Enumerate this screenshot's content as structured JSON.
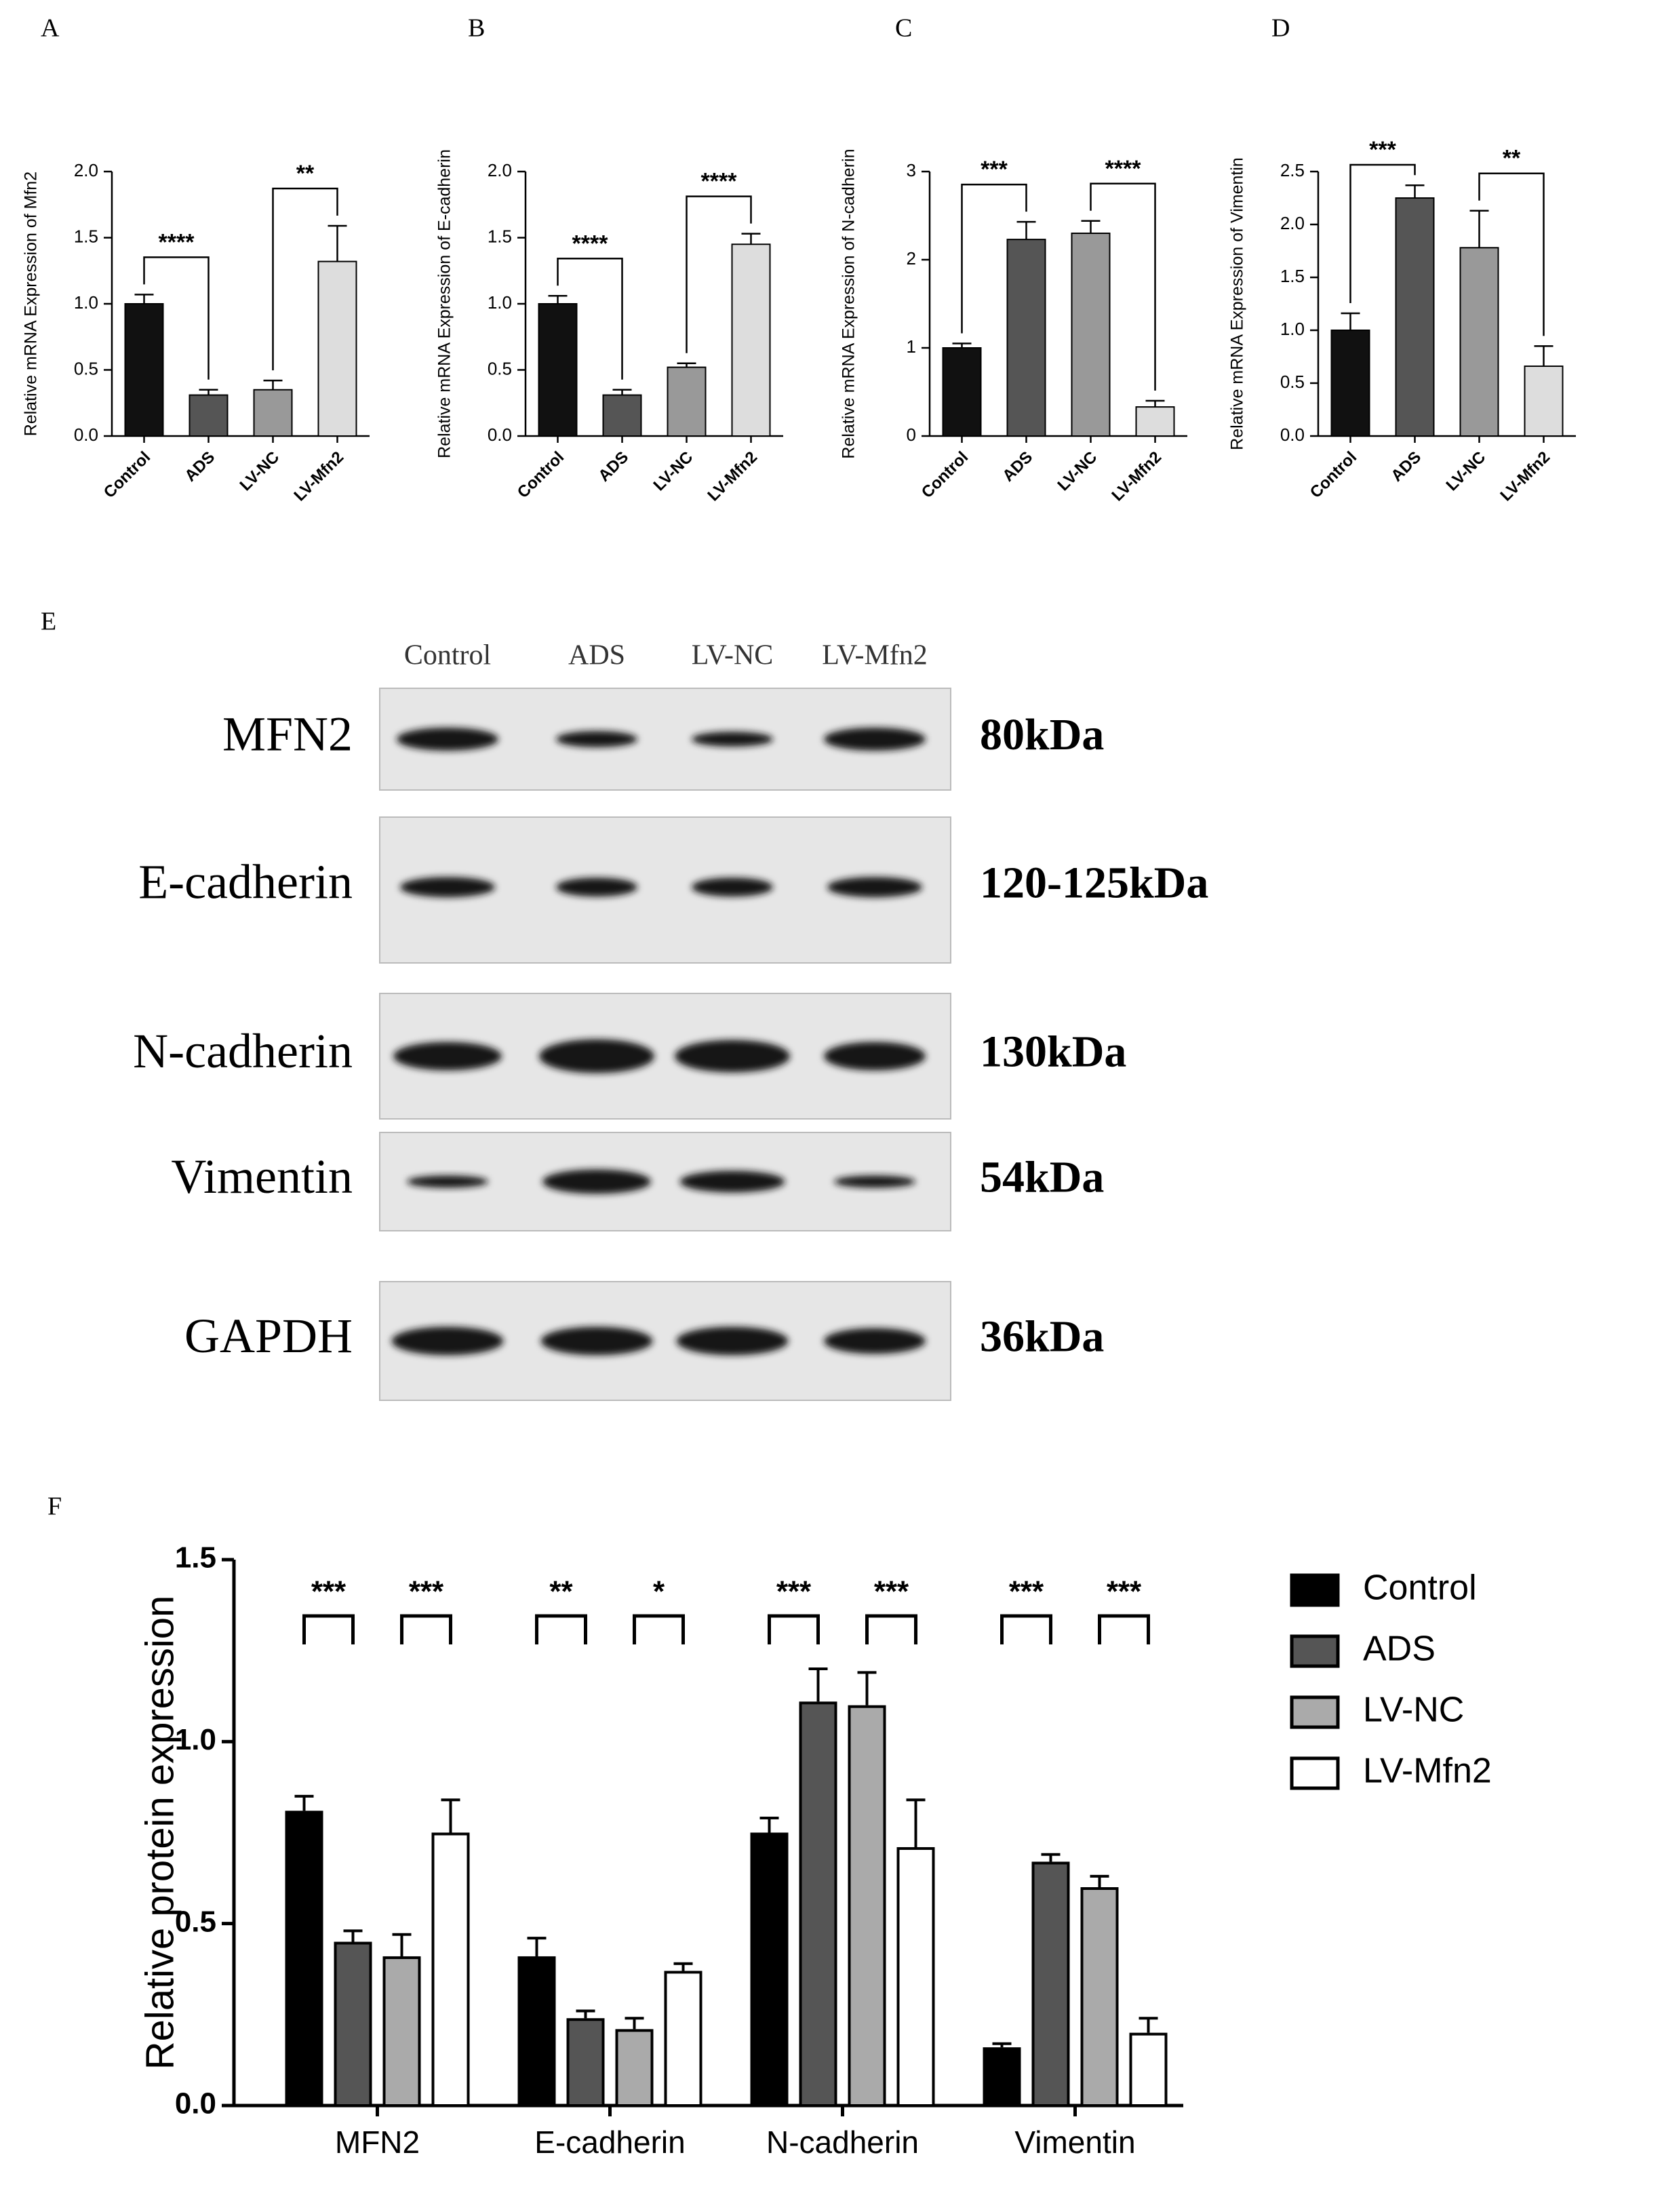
{
  "chart_data": [
    {
      "type": "bar",
      "label": "A",
      "y_label": "Relative mRNA Expression of Mfn2",
      "categories": [
        "Control",
        "ADS",
        "LV-NC",
        "LV-Mfn2"
      ],
      "values": [
        1.0,
        0.31,
        0.35,
        1.32
      ],
      "errors": [
        0.07,
        0.04,
        0.07,
        0.27
      ],
      "colors": [
        "#111111",
        "#555555",
        "#999999",
        "#dddddd"
      ],
      "ylim": [
        0,
        2
      ],
      "yticks": [
        {
          "value": 0,
          "label": "0.0"
        },
        {
          "value": 0.5,
          "label": "0.5"
        },
        {
          "value": 1,
          "label": "1.0"
        },
        {
          "value": 1.5,
          "label": "1.5"
        },
        {
          "value": 2,
          "label": "2.0"
        }
      ],
      "annotations": [
        {
          "text": "****",
          "pair": [
            "Control",
            "ADS"
          ]
        },
        {
          "text": "**",
          "pair": [
            "LV-NC",
            "LV-Mfn2"
          ]
        }
      ]
    },
    {
      "type": "bar",
      "label": "B",
      "y_label": "Relative mRNA Expression of E-cadherin",
      "categories": [
        "Control",
        "ADS",
        "LV-NC",
        "LV-Mfn2"
      ],
      "values": [
        1.0,
        0.31,
        0.52,
        1.45
      ],
      "errors": [
        0.06,
        0.04,
        0.03,
        0.08
      ],
      "colors": [
        "#111111",
        "#555555",
        "#999999",
        "#dddddd"
      ],
      "ylim": [
        0,
        2
      ],
      "yticks": [
        {
          "value": 0,
          "label": "0.0"
        },
        {
          "value": 0.5,
          "label": "0.5"
        },
        {
          "value": 1,
          "label": "1.0"
        },
        {
          "value": 1.5,
          "label": "1.5"
        },
        {
          "value": 2,
          "label": "2.0"
        }
      ],
      "annotations": [
        {
          "text": "****",
          "pair": [
            "Control",
            "ADS"
          ]
        },
        {
          "text": "****",
          "pair": [
            "LV-NC",
            "LV-Mfn2"
          ]
        }
      ]
    },
    {
      "type": "bar",
      "label": "C",
      "y_label": "Relative mRNA Expression of N-cadherin",
      "categories": [
        "Control",
        "ADS",
        "LV-NC",
        "LV-Mfn2"
      ],
      "values": [
        1.0,
        2.23,
        2.3,
        0.33
      ],
      "errors": [
        0.05,
        0.2,
        0.14,
        0.07
      ],
      "colors": [
        "#111111",
        "#555555",
        "#999999",
        "#dddddd"
      ],
      "ylim": [
        0,
        3
      ],
      "yticks": [
        0,
        1,
        2,
        3
      ],
      "annotations": [
        {
          "text": "***",
          "pair": [
            "Control",
            "ADS"
          ]
        },
        {
          "text": "****",
          "pair": [
            "LV-NC",
            "LV-Mfn2"
          ]
        }
      ]
    },
    {
      "type": "bar",
      "label": "D",
      "y_label": "Relative mRNA Expression of Vimentin",
      "categories": [
        "Control",
        "ADS",
        "LV-NC",
        "LV-Mfn2"
      ],
      "values": [
        1.0,
        2.25,
        1.78,
        0.66
      ],
      "errors": [
        0.16,
        0.12,
        0.35,
        0.19
      ],
      "colors": [
        "#111111",
        "#555555",
        "#999999",
        "#dddddd"
      ],
      "ylim": [
        0,
        2.5
      ],
      "yticks": [
        {
          "value": 0,
          "label": "0.0"
        },
        {
          "value": 0.5,
          "label": "0.5"
        },
        {
          "value": 1,
          "label": "1.0"
        },
        {
          "value": 1.5,
          "label": "1.5"
        },
        {
          "value": 2,
          "label": "2.0"
        },
        {
          "value": 2.5,
          "label": "2.5"
        }
      ],
      "annotations": [
        {
          "text": "***",
          "pair": [
            "Control",
            "ADS"
          ]
        },
        {
          "text": "**",
          "pair": [
            "LV-NC",
            "LV-Mfn2"
          ]
        }
      ]
    },
    {
      "type": "grouped_bar",
      "label": "F",
      "y_label": "Relative protein expression",
      "categories": [
        "MFN2",
        "E-cadherin",
        "N-cadherin",
        "Vimentin"
      ],
      "series": [
        {
          "name": "Control",
          "color": "#000000",
          "values": [
            0.81,
            0.41,
            0.75,
            0.16
          ],
          "errors": [
            0.04,
            0.05,
            0.04,
            0.01
          ]
        },
        {
          "name": "ADS",
          "color": "#555555",
          "values": [
            0.45,
            0.24,
            1.11,
            0.67
          ],
          "errors": [
            0.03,
            0.02,
            0.09,
            0.02
          ]
        },
        {
          "name": "LV-NC",
          "color": "#aaaaaa",
          "values": [
            0.41,
            0.21,
            1.1,
            0.6
          ],
          "errors": [
            0.06,
            0.03,
            0.09,
            0.03
          ]
        },
        {
          "name": "LV-Mfn2",
          "color": "#ffffff",
          "values": [
            0.75,
            0.37,
            0.71,
            0.2
          ],
          "errors": [
            0.09,
            0.02,
            0.13,
            0.04
          ]
        }
      ],
      "ylim": [
        0,
        1.5
      ],
      "yticks": [
        {
          "value": 0,
          "label": "0.0"
        },
        {
          "value": 0.5,
          "label": "0.5"
        },
        {
          "value": 1,
          "label": "1.0"
        },
        {
          "value": 1.5,
          "label": "1.5"
        }
      ],
      "legend": "right",
      "annotations": [
        {
          "text": "***",
          "category": "MFN2",
          "pair": [
            "Control",
            "ADS"
          ]
        },
        {
          "text": "***",
          "category": "MFN2",
          "pair": [
            "LV-NC",
            "LV-Mfn2"
          ]
        },
        {
          "text": "**",
          "category": "E-cadherin",
          "pair": [
            "Control",
            "ADS"
          ]
        },
        {
          "text": "*",
          "category": "E-cadherin",
          "pair": [
            "LV-NC",
            "LV-Mfn2"
          ]
        },
        {
          "text": "***",
          "category": "N-cadherin",
          "pair": [
            "Control",
            "ADS"
          ]
        },
        {
          "text": "***",
          "category": "N-cadherin",
          "pair": [
            "LV-NC",
            "LV-Mfn2"
          ]
        },
        {
          "text": "***",
          "category": "Vimentin",
          "pair": [
            "Control",
            "ADS"
          ]
        },
        {
          "text": "***",
          "category": "Vimentin",
          "pair": [
            "LV-NC",
            "LV-Mfn2"
          ]
        }
      ]
    }
  ],
  "blot": {
    "label": "E",
    "lanes": [
      "Control",
      "ADS",
      "LV-NC",
      "LV-Mfn2"
    ],
    "rows": [
      {
        "protein": "MFN2",
        "size": "80kDa"
      },
      {
        "protein": "E-cadherin",
        "size": "120-125kDa"
      },
      {
        "protein": "N-cadherin",
        "size": "130kDa"
      },
      {
        "protein": "Vimentin",
        "size": "54kDa"
      },
      {
        "protein": "GAPDH",
        "size": "36kDa"
      }
    ]
  }
}
